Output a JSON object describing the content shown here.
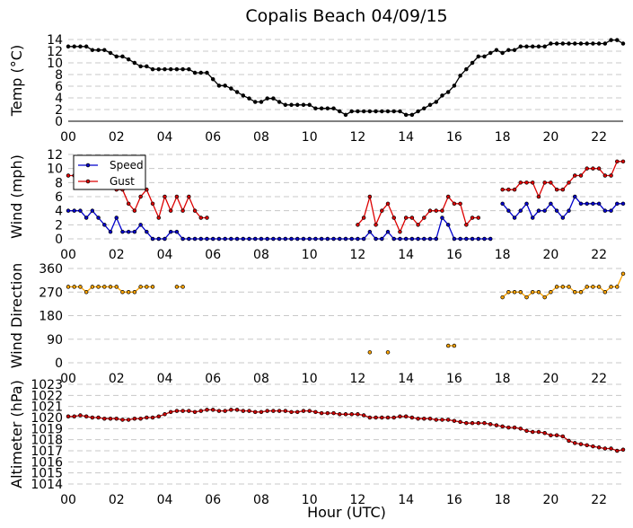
{
  "title": "Copalis Beach 04/09/15",
  "xlabel": "Hour (UTC)",
  "x_ticks": [
    "00",
    "02",
    "04",
    "06",
    "08",
    "10",
    "12",
    "14",
    "16",
    "18",
    "20",
    "22"
  ],
  "colors": {
    "temp": "#000000",
    "speed": "#0000cc",
    "gust": "#dd0000",
    "direction": "#ffa500",
    "altimeter": "#cc0000",
    "marker_edge": "#000000",
    "grid": "#c8c8c8"
  },
  "legend": {
    "speed": "Speed",
    "gust": "Gust"
  },
  "chart_data": [
    {
      "type": "line",
      "ylabel": "Temp (°C)",
      "xlim": [
        0,
        23
      ],
      "ylim": [
        0,
        14
      ],
      "y_ticks": [
        "0",
        "2",
        "4",
        "6",
        "8",
        "10",
        "12",
        "14"
      ],
      "grid": true,
      "series": [
        {
          "key": "temp",
          "x": [
            0,
            0.25,
            0.5,
            0.75,
            1,
            1.25,
            1.5,
            1.75,
            2,
            2.25,
            2.5,
            2.75,
            3,
            3.25,
            3.5,
            3.75,
            4,
            4.25,
            4.5,
            4.75,
            5,
            5.25,
            5.5,
            5.75,
            6,
            6.25,
            6.5,
            6.75,
            7,
            7.25,
            7.5,
            7.75,
            8,
            8.25,
            8.5,
            8.75,
            9,
            9.25,
            9.5,
            9.75,
            10,
            10.25,
            10.5,
            10.75,
            11,
            11.25,
            11.5,
            11.75,
            12,
            12.25,
            12.5,
            12.75,
            13,
            13.25,
            13.5,
            13.75,
            14,
            14.25,
            14.5,
            14.75,
            15,
            15.25,
            15.5,
            15.75,
            16,
            16.25,
            16.5,
            16.75,
            17,
            17.25,
            17.5,
            17.75,
            18,
            18.25,
            18.5,
            18.75,
            19,
            19.25,
            19.5,
            19.75,
            20,
            20.25,
            20.5,
            20.75,
            21,
            21.25,
            21.5,
            21.75,
            22,
            22.25,
            22.5,
            22.75,
            23
          ],
          "y": [
            12.8,
            12.8,
            12.8,
            12.8,
            12.2,
            12.2,
            12.2,
            11.7,
            11.1,
            11.1,
            10.6,
            10,
            9.4,
            9.4,
            8.9,
            8.9,
            8.9,
            8.9,
            8.9,
            8.9,
            8.9,
            8.3,
            8.3,
            8.3,
            7.2,
            6.1,
            6.1,
            5.6,
            5,
            4.4,
            3.9,
            3.3,
            3.3,
            3.9,
            3.9,
            3.3,
            2.8,
            2.8,
            2.8,
            2.8,
            2.8,
            2.2,
            2.2,
            2.2,
            2.2,
            1.7,
            1.1,
            1.7,
            1.7,
            1.7,
            1.7,
            1.7,
            1.7,
            1.7,
            1.7,
            1.7,
            1.1,
            1.1,
            1.7,
            2.2,
            2.8,
            3.3,
            4.4,
            5,
            6.1,
            7.8,
            8.9,
            10,
            11.1,
            11.1,
            11.7,
            12.2,
            11.7,
            12.2,
            12.2,
            12.8,
            12.8,
            12.8,
            12.8,
            12.8,
            13.3,
            13.3,
            13.3,
            13.3,
            13.3,
            13.3,
            13.3,
            13.3,
            13.3,
            13.3,
            13.9,
            13.9,
            13.3
          ]
        }
      ]
    },
    {
      "type": "line",
      "ylabel": "Wind (mph)",
      "xlim": [
        0,
        23
      ],
      "ylim": [
        0,
        12
      ],
      "y_ticks": [
        "0",
        "2",
        "4",
        "6",
        "8",
        "10",
        "12"
      ],
      "grid": true,
      "legend_position": "top-left",
      "series": [
        {
          "key": "speed",
          "name": "Speed",
          "segments": [
            {
              "x": [
                0,
                0.25,
                0.5,
                0.75,
                1,
                1.25,
                1.5,
                1.75,
                2,
                2.25,
                2.5,
                2.75,
                3,
                3.25,
                3.5,
                3.75,
                4,
                4.25,
                4.5,
                4.75,
                5,
                5.25,
                5.5,
                5.75,
                6,
                6.25,
                6.5,
                6.75,
                7,
                7.25,
                7.5,
                7.75,
                8,
                8.25,
                8.5,
                8.75,
                9,
                9.25,
                9.5,
                9.75,
                10,
                10.25,
                10.5,
                10.75,
                11,
                11.25,
                11.5,
                11.75,
                12,
                12.25,
                12.5,
                12.75,
                13,
                13.25,
                13.5,
                13.75,
                14,
                14.25,
                14.5,
                14.75,
                15,
                15.25,
                15.5,
                15.75,
                16,
                16.25,
                16.5,
                16.75,
                17,
                17.25,
                17.5
              ],
              "y": [
                4,
                4,
                4,
                3,
                4,
                3,
                2,
                1,
                3,
                1,
                1,
                1,
                2,
                1,
                0,
                0,
                0,
                1,
                1,
                0,
                0,
                0,
                0,
                0,
                0,
                0,
                0,
                0,
                0,
                0,
                0,
                0,
                0,
                0,
                0,
                0,
                0,
                0,
                0,
                0,
                0,
                0,
                0,
                0,
                0,
                0,
                0,
                0,
                0,
                0,
                1,
                0,
                0,
                1,
                0,
                0,
                0,
                0,
                0,
                0,
                0,
                0,
                3,
                2,
                0,
                0,
                0,
                0,
                0,
                0,
                0
              ]
            },
            {
              "x": [
                18,
                18.25,
                18.5,
                18.75,
                19,
                19.25,
                19.5,
                19.75,
                20,
                20.25,
                20.5,
                20.75,
                21,
                21.25,
                21.5,
                21.75,
                22,
                22.25,
                22.5,
                22.75,
                23
              ],
              "y": [
                5,
                4,
                3,
                4,
                5,
                3,
                4,
                4,
                5,
                4,
                3,
                4,
                6,
                5,
                5,
                5,
                5,
                4,
                4,
                5,
                5
              ]
            }
          ]
        },
        {
          "key": "gust",
          "name": "Gust",
          "segments": [
            {
              "x": [
                0,
                0.25,
                0.5,
                0.75,
                1,
                1.25,
                1.5,
                1.75,
                2,
                2.25,
                2.5,
                2.75,
                3,
                3.25,
                3.5,
                3.75,
                4,
                4.25,
                4.5,
                4.75,
                5,
                5.25,
                5.5,
                5.75
              ],
              "y": [
                9,
                9,
                10,
                11,
                9,
                8,
                9,
                8,
                7,
                7,
                5,
                4,
                6,
                7,
                5,
                3,
                6,
                4,
                6,
                4,
                6,
                4,
                3,
                3
              ]
            },
            {
              "x": [
                12,
                12.25,
                12.5,
                12.75,
                13,
                13.25,
                13.5,
                13.75,
                14,
                14.25,
                14.5,
                14.75,
                15,
                15.25,
                15.5,
                15.75,
                16,
                16.25,
                16.5,
                16.75,
                17
              ],
              "y": [
                2,
                3,
                6,
                2,
                4,
                5,
                3,
                1,
                3,
                3,
                2,
                3,
                4,
                4,
                4,
                6,
                5,
                5,
                2,
                3,
                3
              ]
            },
            {
              "x": [
                18,
                18.25,
                18.5,
                18.75,
                19,
                19.25,
                19.5,
                19.75,
                20,
                20.25,
                20.5,
                20.75,
                21,
                21.25,
                21.5,
                21.75,
                22,
                22.25,
                22.5,
                22.75,
                23
              ],
              "y": [
                7,
                7,
                7,
                8,
                8,
                8,
                6,
                8,
                8,
                7,
                7,
                8,
                9,
                9,
                10,
                10,
                10,
                9,
                9,
                11,
                11
              ]
            }
          ]
        }
      ]
    },
    {
      "type": "line",
      "ylabel": "Wind Direction",
      "xlim": [
        0,
        23
      ],
      "ylim": [
        0,
        360
      ],
      "y_ticks": [
        "0",
        "90",
        "180",
        "270",
        "360"
      ],
      "grid": true,
      "series": [
        {
          "key": "direction",
          "segments": [
            {
              "x": [
                0,
                0.25,
                0.5,
                0.75,
                1,
                1.25,
                1.5,
                1.75,
                2,
                2.25,
                2.5,
                2.75,
                3,
                3.25,
                3.5
              ],
              "y": [
                290,
                290,
                290,
                270,
                290,
                290,
                290,
                290,
                290,
                270,
                270,
                270,
                290,
                290,
                290
              ]
            },
            {
              "x": [
                4.5,
                4.75
              ],
              "y": [
                290,
                290
              ]
            },
            {
              "x": [
                12.5
              ],
              "y": [
                40
              ]
            },
            {
              "x": [
                13.25
              ],
              "y": [
                40
              ]
            },
            {
              "x": [
                15.75,
                16
              ],
              "y": [
                65,
                65
              ]
            },
            {
              "x": [
                18,
                18.25,
                18.5,
                18.75,
                19,
                19.25,
                19.5,
                19.75,
                20,
                20.25,
                20.5,
                20.75,
                21,
                21.25,
                21.5,
                21.75,
                22,
                22.25,
                22.5,
                22.75,
                23
              ],
              "y": [
                250,
                270,
                270,
                270,
                250,
                270,
                270,
                250,
                270,
                290,
                290,
                290,
                270,
                270,
                290,
                290,
                290,
                270,
                290,
                290,
                340
              ]
            }
          ]
        }
      ]
    },
    {
      "type": "line",
      "ylabel": "Altimeter (hPa)",
      "xlim": [
        0,
        23
      ],
      "ylim": [
        1014,
        1023
      ],
      "y_ticks": [
        "1014",
        "1015",
        "1016",
        "1017",
        "1018",
        "1019",
        "1020",
        "1021",
        "1022",
        "1023"
      ],
      "grid": true,
      "series": [
        {
          "key": "altimeter",
          "x": [
            0,
            0.25,
            0.5,
            0.75,
            1,
            1.25,
            1.5,
            1.75,
            2,
            2.25,
            2.5,
            2.75,
            3,
            3.25,
            3.5,
            3.75,
            4,
            4.25,
            4.5,
            4.75,
            5,
            5.25,
            5.5,
            5.75,
            6,
            6.25,
            6.5,
            6.75,
            7,
            7.25,
            7.5,
            7.75,
            8,
            8.25,
            8.5,
            8.75,
            9,
            9.25,
            9.5,
            9.75,
            10,
            10.25,
            10.5,
            10.75,
            11,
            11.25,
            11.5,
            11.75,
            12,
            12.25,
            12.5,
            12.75,
            13,
            13.25,
            13.5,
            13.75,
            14,
            14.25,
            14.5,
            14.75,
            15,
            15.25,
            15.5,
            15.75,
            16,
            16.25,
            16.5,
            16.75,
            17,
            17.25,
            17.5,
            17.75,
            18,
            18.25,
            18.5,
            18.75,
            19,
            19.25,
            19.5,
            19.75,
            20,
            20.25,
            20.5,
            20.75,
            21,
            21.25,
            21.5,
            21.75,
            22,
            22.25,
            22.5,
            22.75,
            23
          ],
          "y": [
            1020.1,
            1020.1,
            1020.2,
            1020.1,
            1020,
            1020,
            1019.9,
            1019.9,
            1019.9,
            1019.8,
            1019.8,
            1019.9,
            1019.9,
            1020,
            1020,
            1020.1,
            1020.3,
            1020.5,
            1020.6,
            1020.6,
            1020.6,
            1020.5,
            1020.6,
            1020.7,
            1020.7,
            1020.6,
            1020.6,
            1020.7,
            1020.7,
            1020.6,
            1020.6,
            1020.5,
            1020.5,
            1020.6,
            1020.6,
            1020.6,
            1020.6,
            1020.5,
            1020.5,
            1020.6,
            1020.6,
            1020.5,
            1020.4,
            1020.4,
            1020.4,
            1020.3,
            1020.3,
            1020.3,
            1020.3,
            1020.2,
            1020,
            1020,
            1020,
            1020,
            1020,
            1020.1,
            1020.1,
            1020,
            1019.9,
            1019.9,
            1019.9,
            1019.8,
            1019.8,
            1019.8,
            1019.7,
            1019.6,
            1019.5,
            1019.5,
            1019.5,
            1019.5,
            1019.4,
            1019.3,
            1019.2,
            1019.1,
            1019.1,
            1019,
            1018.8,
            1018.7,
            1018.7,
            1018.6,
            1018.4,
            1018.4,
            1018.3,
            1017.9,
            1017.7,
            1017.6,
            1017.5,
            1017.4,
            1017.3,
            1017.2,
            1017.2,
            1017,
            1017.1
          ]
        }
      ]
    }
  ]
}
